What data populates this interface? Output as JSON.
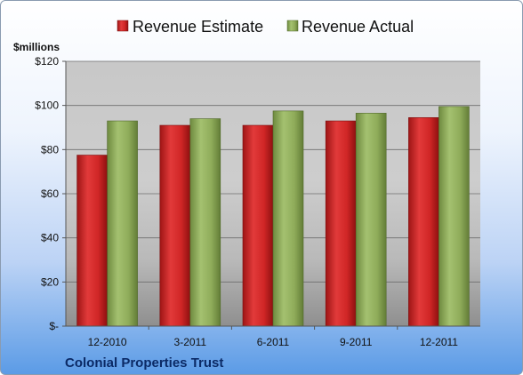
{
  "chart_data": {
    "type": "bar",
    "title": "",
    "footer_label": "Colonial Properties Trust",
    "unit_label": "$millions",
    "categories": [
      "12-2010",
      "3-2011",
      "6-2011",
      "9-2011",
      "12-2011"
    ],
    "series": [
      {
        "name": "Revenue Estimate",
        "values": [
          77.5,
          91,
          91,
          93,
          94.5
        ],
        "color": "#d42a2a"
      },
      {
        "name": "Revenue Actual",
        "values": [
          93,
          94,
          97.5,
          96.5,
          99.5
        ],
        "color": "#8fac5a"
      }
    ],
    "ylim": [
      0,
      120
    ],
    "yticks": [
      0,
      20,
      40,
      60,
      80,
      100,
      120
    ],
    "ytick_labels": [
      "$-",
      "$20",
      "$40",
      "$60",
      "$80",
      "$100",
      "$120"
    ],
    "grid": true,
    "legend_position": "top"
  }
}
